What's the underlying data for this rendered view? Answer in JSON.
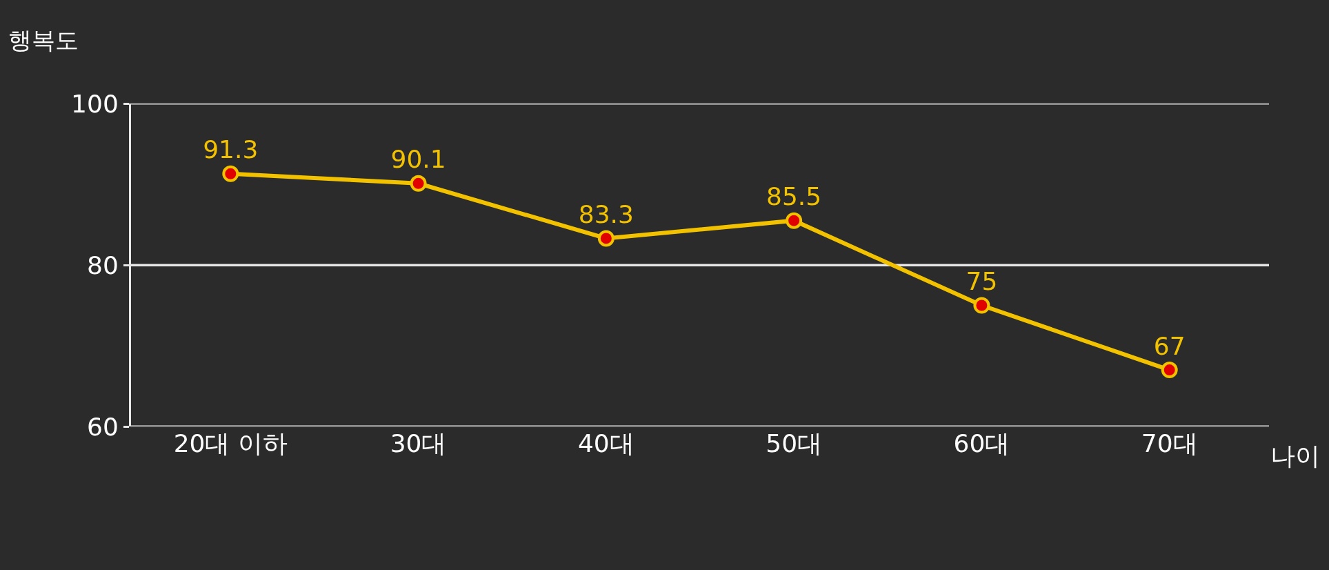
{
  "chart_data": {
    "type": "line",
    "ylabel": "행복도",
    "xlabel": "나이",
    "categories": [
      "20대 이하",
      "30대",
      "40대",
      "50대",
      "60대",
      "70대"
    ],
    "series": [
      {
        "color": "#f2c200",
        "values": [
          91.3,
          90.1,
          83.3,
          85.5,
          75,
          67
        ]
      }
    ],
    "ylim": [
      60,
      100
    ],
    "yticks": [
      60,
      80,
      100
    ],
    "grid": "y",
    "marker": "circle",
    "line_style": "solid",
    "data_labels": true,
    "legend": false
  }
}
